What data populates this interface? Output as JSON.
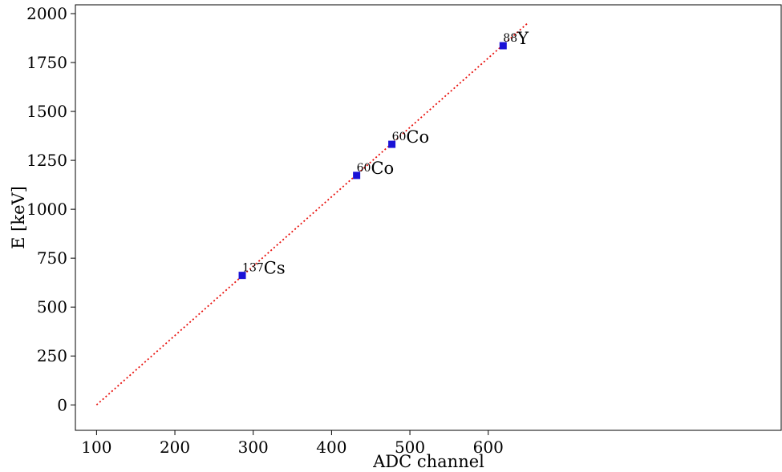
{
  "chart_data": {
    "type": "scatter",
    "title": "",
    "xlabel": "ADC channel",
    "ylabel": "E [keV]",
    "xlim": [
      73,
      975
    ],
    "ylim": [
      -130,
      2045
    ],
    "x_ticks": [
      100,
      200,
      300,
      400,
      500,
      600
    ],
    "y_ticks": [
      0,
      250,
      500,
      750,
      1000,
      1250,
      1500,
      1750,
      2000
    ],
    "grid": false,
    "colors": {
      "points": "#1a12d6",
      "fit_line": "#e8100c",
      "axes": "#000000"
    },
    "points": [
      {
        "x": 286,
        "y": 662,
        "isotope_mass": "137",
        "isotope_symbol": "Cs"
      },
      {
        "x": 432,
        "y": 1173,
        "isotope_mass": "60",
        "isotope_symbol": "Co"
      },
      {
        "x": 477,
        "y": 1332,
        "isotope_mass": "60",
        "isotope_symbol": "Co"
      },
      {
        "x": 619,
        "y": 1836,
        "isotope_mass": "88",
        "isotope_symbol": "Y"
      }
    ],
    "fit_line": {
      "style": "dotted",
      "x": [
        100,
        650
      ],
      "y": [
        0,
        1950
      ]
    }
  }
}
